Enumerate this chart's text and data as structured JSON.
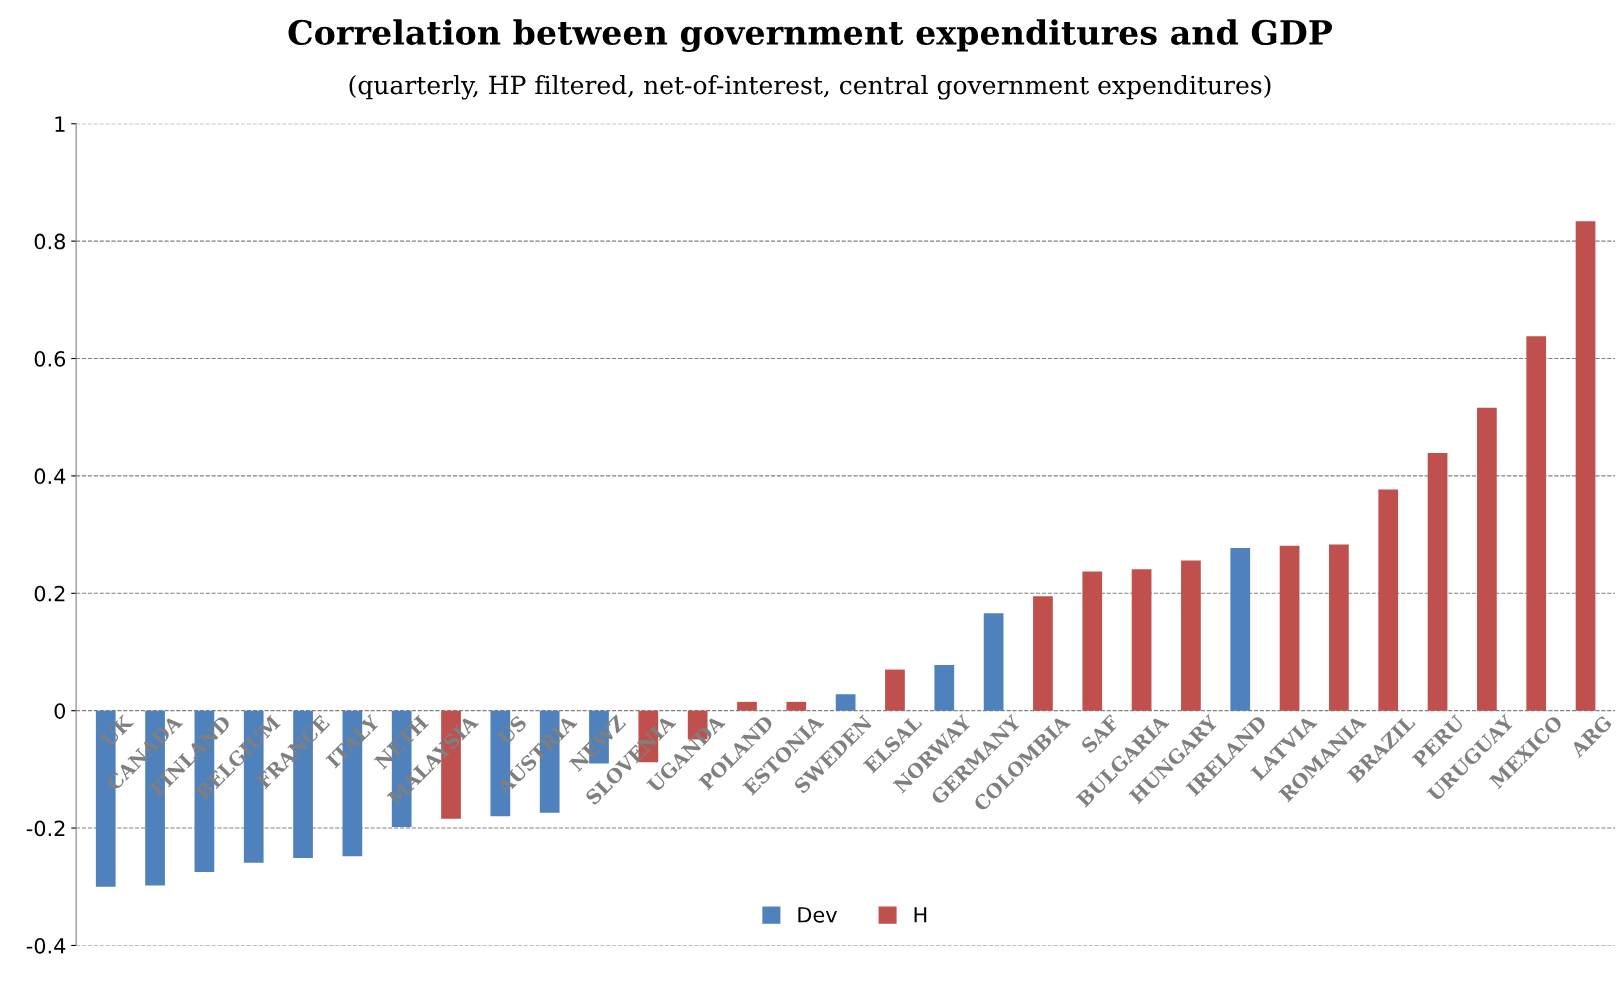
{
  "chart_data": {
    "type": "bar",
    "title": "Correlation between government expenditures and GDP",
    "subtitle": "(quarterly, HP filtered, net-of-interest, central government expenditures)",
    "categories": [
      "UK",
      "CANADA",
      "FINLAND",
      "BELGIUM",
      "FRANCE",
      "ITALY",
      "NETH",
      "MALAYSIA",
      "US",
      "AUSTRIA",
      "NEWZ",
      "SLOVENIA",
      "UGANDA",
      "POLAND",
      "ESTONIA",
      "SWEDEN",
      "ELSAL",
      "NORWAY",
      "GERMANY",
      "COLOMBIA",
      "SAF",
      "BULGARIA",
      "HUNGARY",
      "IRELAND",
      "LATVIA",
      "ROMANIA",
      "BRAZIL",
      "PERU",
      "URUGUAY",
      "MEXICO",
      "ARG"
    ],
    "series": [
      {
        "name": "Dev",
        "color": "#4f81bd",
        "values": [
          -0.3,
          -0.298,
          -0.275,
          -0.259,
          -0.251,
          -0.248,
          -0.198,
          null,
          -0.18,
          -0.174,
          -0.09,
          null,
          null,
          null,
          null,
          0.028,
          null,
          0.078,
          0.166,
          null,
          null,
          null,
          null,
          0.277,
          null,
          null,
          null,
          null,
          null,
          null,
          null
        ]
      },
      {
        "name": "H",
        "color": "#c0504d",
        "values": [
          null,
          null,
          null,
          null,
          null,
          null,
          null,
          -0.184,
          null,
          null,
          null,
          -0.088,
          -0.049,
          0.015,
          0.015,
          null,
          0.07,
          null,
          null,
          0.195,
          0.237,
          0.241,
          0.256,
          null,
          0.281,
          0.283,
          0.377,
          0.439,
          0.516,
          0.638,
          0.834
        ]
      }
    ],
    "ylim": [
      -0.4,
      1
    ],
    "yticks": [
      -0.4,
      -0.2,
      0,
      0.2,
      0.4,
      0.6,
      0.8,
      1
    ],
    "grid": "y",
    "legend": "bottom"
  }
}
